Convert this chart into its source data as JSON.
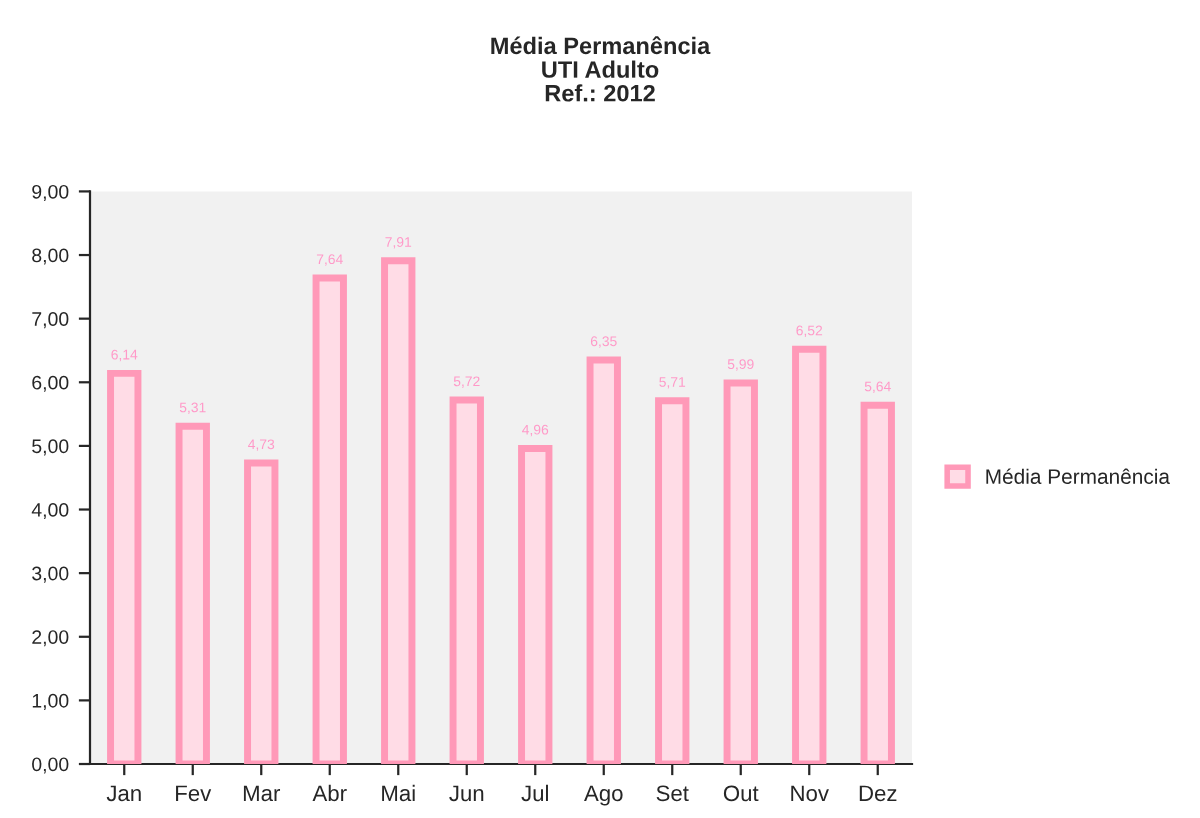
{
  "chart_data": {
    "type": "bar",
    "title": "Média Permanência\nUTI Adulto\nRef.: 2012",
    "categories": [
      "Jan",
      "Fev",
      "Mar",
      "Abr",
      "Mai",
      "Jun",
      "Jul",
      "Ago",
      "Set",
      "Out",
      "Nov",
      "Dez"
    ],
    "series": [
      {
        "name": "Média Permanência",
        "color": "#ff99b8",
        "values": [
          6.14,
          5.31,
          4.73,
          7.64,
          7.91,
          5.72,
          4.96,
          6.35,
          5.71,
          5.99,
          6.52,
          5.64
        ],
        "value_labels": [
          "6,14",
          "5,31",
          "4,73",
          "7,64",
          "7,91",
          "5,72",
          "4,96",
          "6,35",
          "5,71",
          "5,99",
          "6,52",
          "5,64"
        ]
      }
    ],
    "ylim": [
      0,
      9
    ],
    "yticks": [
      {
        "value": 0,
        "label": "0,00"
      },
      {
        "value": 1,
        "label": "1,00"
      },
      {
        "value": 2,
        "label": "2,00"
      },
      {
        "value": 3,
        "label": "3,00"
      },
      {
        "value": 4,
        "label": "4,00"
      },
      {
        "value": 5,
        "label": "5,00"
      },
      {
        "value": 6,
        "label": "6,00"
      },
      {
        "value": 7,
        "label": "7,00"
      },
      {
        "value": 8,
        "label": "8,00"
      },
      {
        "value": 9,
        "label": "9,00"
      }
    ],
    "grid": false,
    "legend": "right"
  }
}
